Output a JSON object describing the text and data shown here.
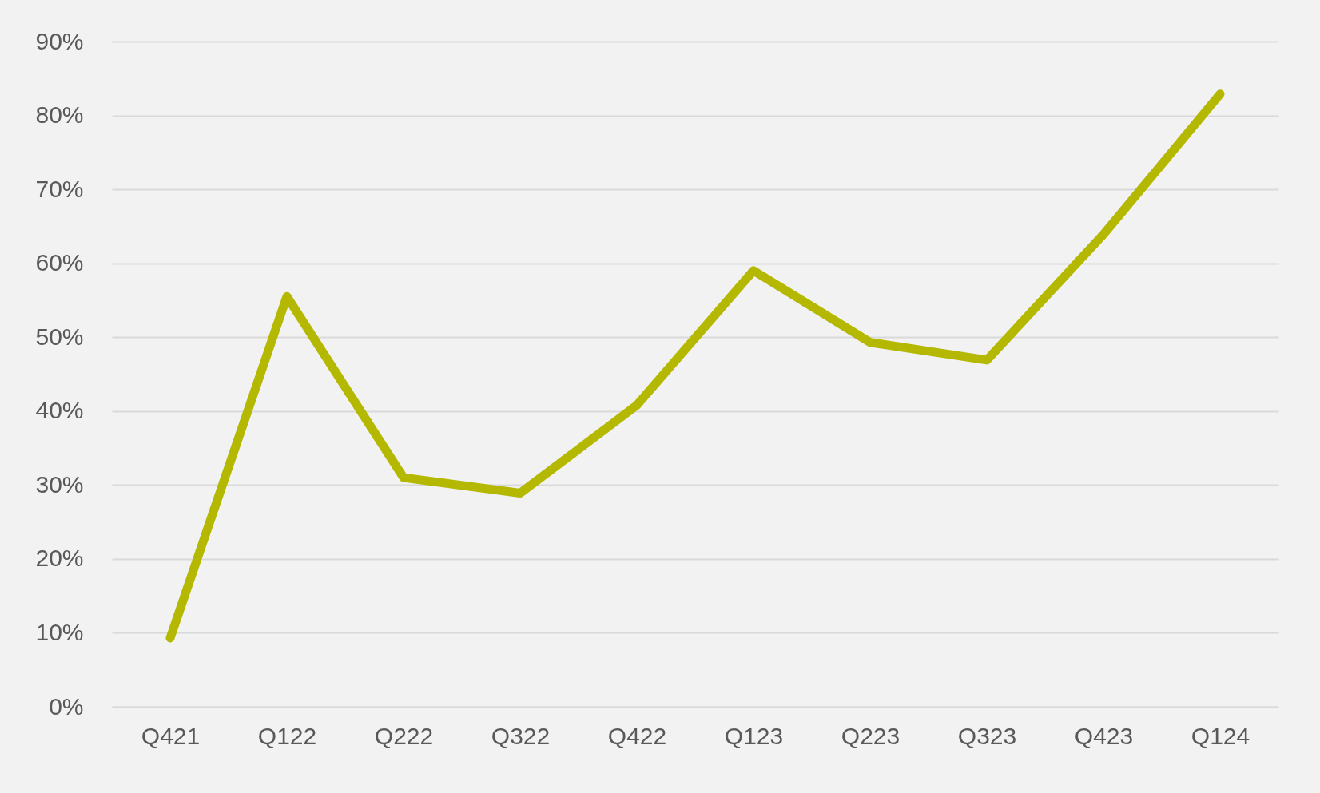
{
  "chart_data": {
    "type": "line",
    "categories": [
      "Q421",
      "Q122",
      "Q222",
      "Q322",
      "Q422",
      "Q123",
      "Q223",
      "Q323",
      "Q423",
      "Q124"
    ],
    "series": [
      {
        "color": "#b5b800",
        "values": [
          9.3,
          55.5,
          31,
          28.9,
          40.8,
          59,
          49.3,
          46.9,
          63.9,
          82.9
        ]
      }
    ],
    "ylim": [
      0,
      90
    ],
    "yticks": [
      {
        "value": 0,
        "label": "0%"
      },
      {
        "value": 10,
        "label": "10%"
      },
      {
        "value": 20,
        "label": "20%"
      },
      {
        "value": 30,
        "label": "30%"
      },
      {
        "value": 40,
        "label": "40%"
      },
      {
        "value": 50,
        "label": "50%"
      },
      {
        "value": 60,
        "label": "60%"
      },
      {
        "value": 70,
        "label": "70%"
      },
      {
        "value": 80,
        "label": "80%"
      },
      {
        "value": 90,
        "label": "90%"
      }
    ],
    "grid": "y"
  }
}
